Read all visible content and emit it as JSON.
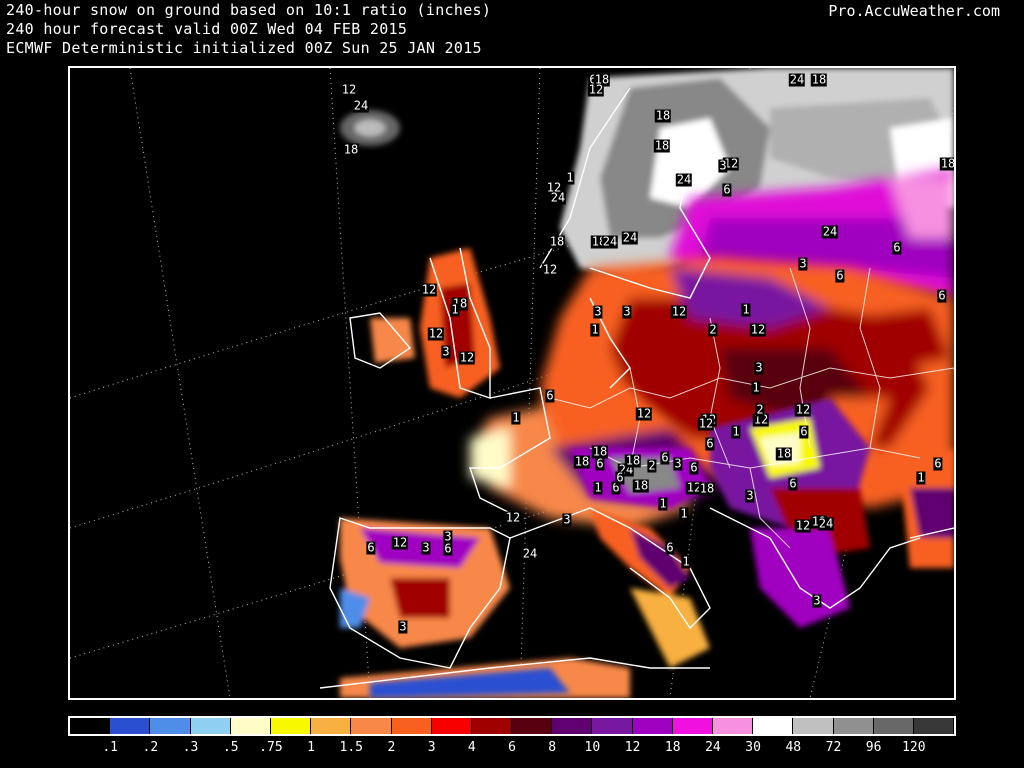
{
  "header": {
    "line1": "240-hour snow on ground based on 10:1 ratio (inches)",
    "line2": "240 hour forecast valid 00Z Wed 04 FEB 2015",
    "line3": "ECMWF Deterministic initialized 00Z Sun 25 JAN 2015",
    "brand": "Pro.AccuWeather.com"
  },
  "colorbar": {
    "colors": [
      "#000000",
      "#2a4fd0",
      "#4f8ee8",
      "#8fd0f0",
      "#fffcc8",
      "#f8f800",
      "#f8b040",
      "#f88848",
      "#f86020",
      "#f80000",
      "#a00000",
      "#580010",
      "#600070",
      "#7818a0",
      "#a000c0",
      "#f010e0",
      "#f890e0",
      "#ffffff",
      "#c0c0c0",
      "#909090",
      "#686868",
      "#383838"
    ],
    "labels": [
      ".1",
      ".2",
      ".3",
      ".5",
      ".75",
      "1",
      "1.5",
      "2",
      "3",
      "4",
      "6",
      "8",
      "10",
      "12",
      "18",
      "24",
      "30",
      "48",
      "72",
      "96",
      "120"
    ]
  },
  "contour_labels": [
    "12",
    "24",
    "18",
    "6",
    "18",
    "12",
    "18",
    "24",
    "18",
    "18",
    "12",
    "24",
    "18",
    "3",
    "12",
    "24",
    "1",
    "18",
    "24",
    "18",
    "24",
    "24",
    "6",
    "6",
    "3",
    "12",
    "12",
    "18",
    "12",
    "3",
    "12",
    "1",
    "12",
    "2",
    "1",
    "6",
    "12",
    "3",
    "3",
    "6",
    "1",
    "3",
    "6",
    "12",
    "18",
    "12",
    "1",
    "1",
    "12",
    "6",
    "6",
    "6",
    "12",
    "18",
    "1",
    "2",
    "12",
    "1",
    "24",
    "18",
    "6",
    "18",
    "3",
    "24",
    "2",
    "1",
    "12",
    "6",
    "6",
    "12",
    "18",
    "12",
    "12",
    "3",
    "24",
    "6",
    "18",
    "3",
    "3",
    "6",
    "12",
    "6",
    "3",
    "3",
    "6",
    "1",
    "1",
    "6",
    "3",
    "1",
    "6"
  ]
}
